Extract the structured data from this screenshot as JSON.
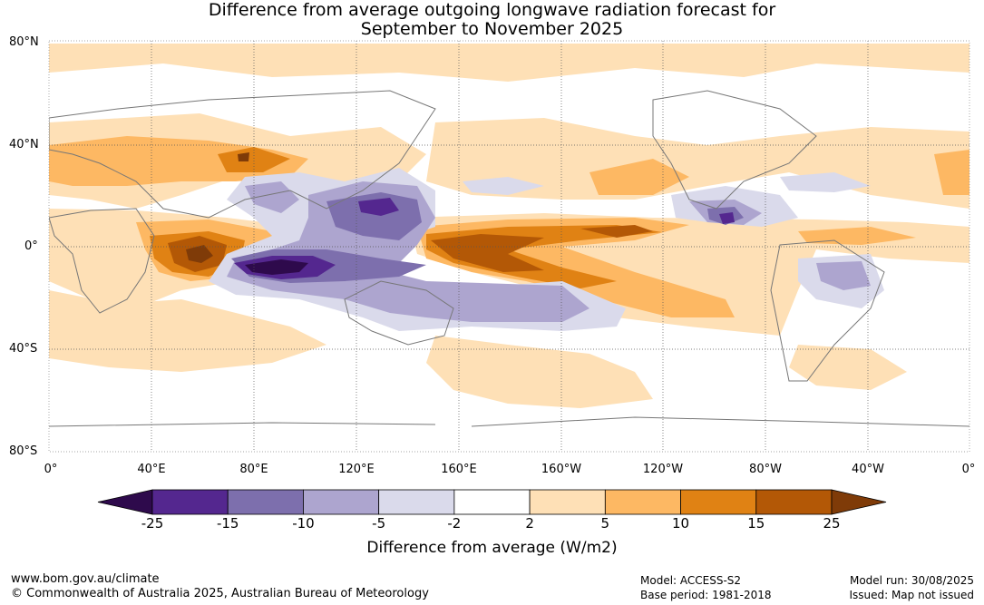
{
  "title": {
    "line1": "Difference from average outgoing longwave radiation forecast for",
    "line2": "September to November 2025"
  },
  "lat_labels": [
    "80°N",
    "40°N",
    "0°",
    "40°S",
    "80°S"
  ],
  "lon_labels": [
    "0°",
    "40°E",
    "80°E",
    "120°E",
    "160°E",
    "160°W",
    "120°W",
    "80°W",
    "40°W",
    "0°"
  ],
  "colorbar": {
    "title": "Difference from average (W/m2)",
    "ticks": [
      "-25",
      "-15",
      "-10",
      "-5",
      "-2",
      "2",
      "5",
      "10",
      "15",
      "25"
    ],
    "colors": [
      "#2e0a4c",
      "#54278f",
      "#7d6fad",
      "#ada5cf",
      "#dadaeb",
      "#ffffff",
      "#fee0b6",
      "#fdb863",
      "#e08214",
      "#b35806",
      "#7f3b08"
    ]
  },
  "footer": {
    "url": "www.bom.gov.au/climate",
    "copyright": "© Commonwealth of Australia 2025, Australian Bureau of Meteorology",
    "model": "Model: ACCESS-S2",
    "base_period": "Base period: 1981-2018",
    "model_run": "Model run: 30/08/2025",
    "issued": "Issued: Map not issued"
  }
}
